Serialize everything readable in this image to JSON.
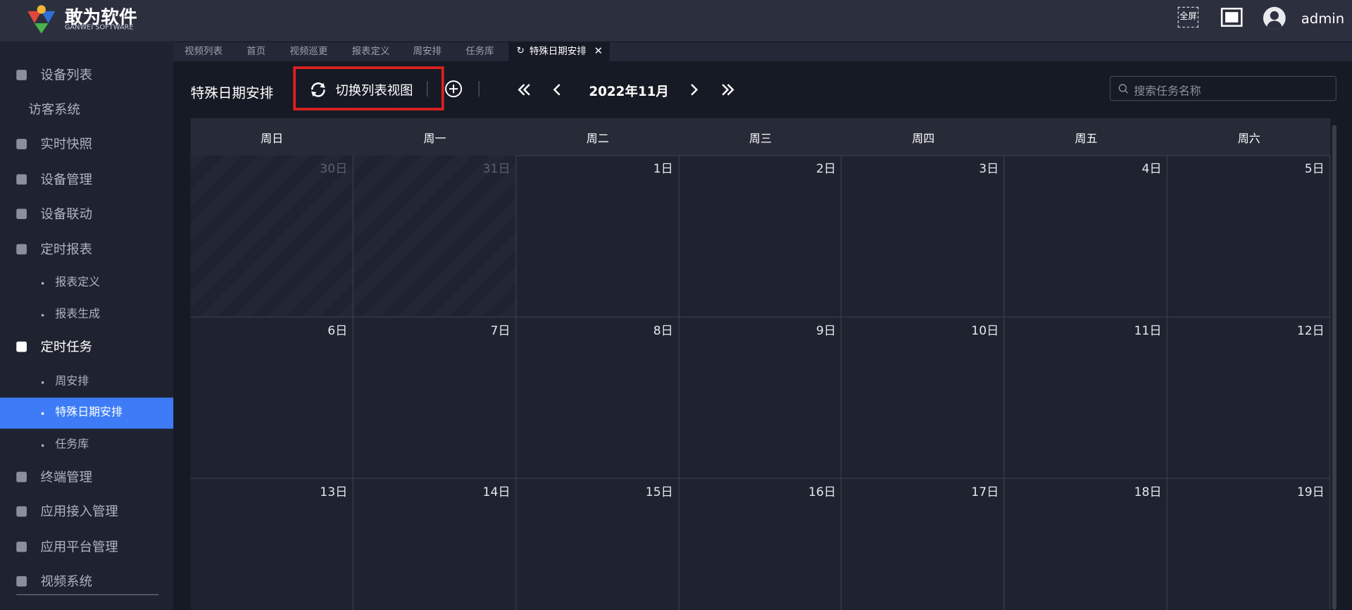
{
  "header": {
    "logo_title": "敢为软件",
    "logo_subtitle": "GANWEI SOFTWARE",
    "fullscreen_label": "全屏",
    "user": "admin"
  },
  "sidebar": {
    "items": [
      "设备列表",
      "访客系统",
      "实时快照",
      "设备管理",
      "设备联动",
      "定时报表",
      "报表定义",
      "报表生成",
      "定时任务",
      "周安排",
      "特殊日期安排",
      "任务库",
      "终端管理",
      "应用接入管理",
      "应用平台管理",
      "视频系统"
    ]
  },
  "tabs": [
    "视频列表",
    "首页",
    "视频巡更",
    "报表定义",
    "周安排",
    "任务库",
    "特殊日期安排"
  ],
  "toolbar": {
    "title": "特殊日期安排",
    "switch_button": "切换列表视图",
    "month": "2022年11月",
    "search_placeholder": "搜索任务名称"
  },
  "calendar": {
    "weekdays": [
      "周日",
      "周一",
      "周二",
      "周三",
      "周四",
      "周五",
      "周六"
    ],
    "weeks": [
      [
        "30日",
        "31日",
        "1日",
        "2日",
        "3日",
        "4日",
        "5日"
      ],
      [
        "6日",
        "7日",
        "8日",
        "9日",
        "10日",
        "11日",
        "12日"
      ],
      [
        "13日",
        "14日",
        "15日",
        "16日",
        "17日",
        "18日",
        "19日"
      ]
    ]
  }
}
